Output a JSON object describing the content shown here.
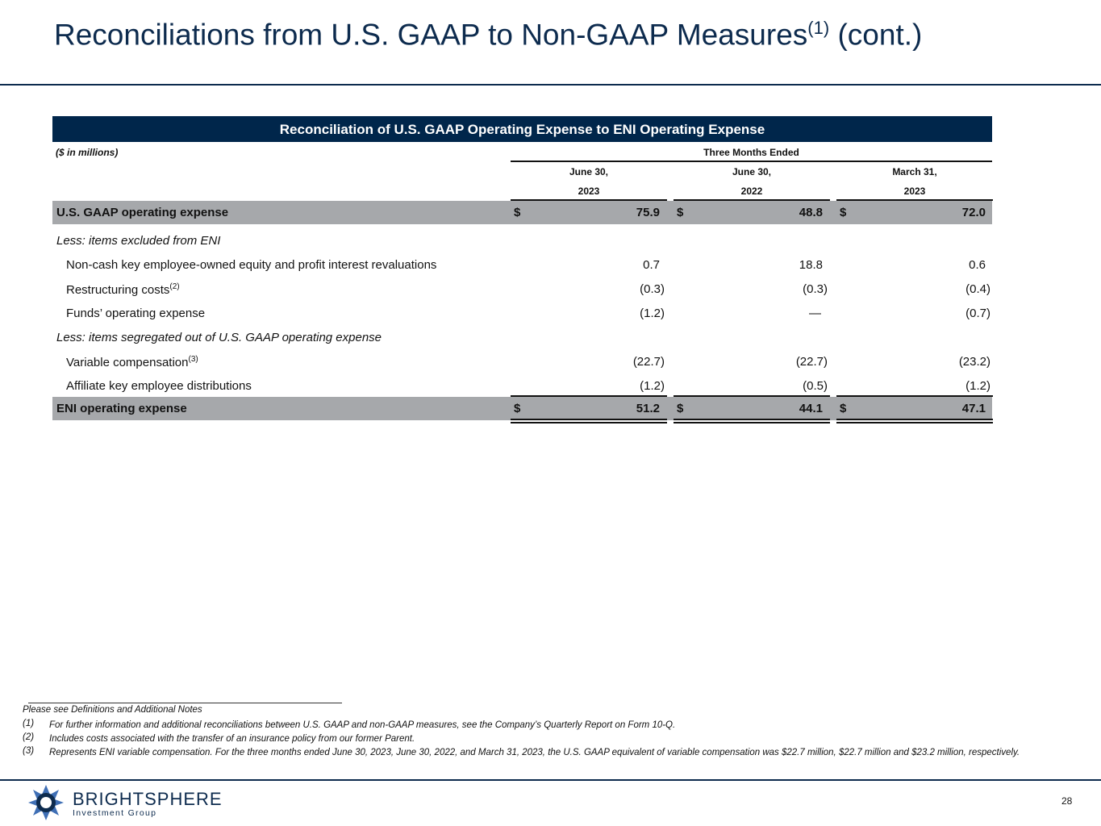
{
  "title": {
    "text": "Reconciliations from U.S. GAAP to Non-GAAP Measures",
    "sup": "(1)",
    "suffix": "(cont.)"
  },
  "table": {
    "caption": "Reconciliation of U.S. GAAP Operating Expense to ENI Operating Expense",
    "units": "($ in millions)",
    "period_header": "Three Months Ended",
    "columns": [
      [
        "June 30,",
        "2023"
      ],
      [
        "June 30,",
        "2022"
      ],
      [
        "March 31,",
        "2023"
      ]
    ],
    "currency": "$",
    "rows": [
      {
        "label": "U.S. GAAP operating expense",
        "values": [
          "75.9",
          "48.8",
          "72.0"
        ]
      },
      {
        "label": "Less: items excluded from ENI"
      },
      {
        "label": "Non-cash key employee-owned equity and profit interest revaluations",
        "values": [
          "0.7",
          "18.8",
          "0.6"
        ]
      },
      {
        "label": "Restructuring costs",
        "note": "(2)",
        "values": [
          "(0.3)",
          "(0.3)",
          "(0.4)"
        ]
      },
      {
        "label": "Funds’ operating expense",
        "values": [
          "(1.2)",
          "—",
          "(0.7)"
        ]
      },
      {
        "label": "Less: items segregated out of U.S. GAAP operating expense"
      },
      {
        "label": "Variable compensation",
        "note": "(3)",
        "values": [
          "(22.7)",
          "(22.7)",
          "(23.2)"
        ]
      },
      {
        "label": "Affiliate key employee distributions",
        "values": [
          "(1.2)",
          "(0.5)",
          "(1.2)"
        ]
      },
      {
        "label": "ENI operating expense",
        "values": [
          "51.2",
          "44.1",
          "47.1"
        ]
      }
    ]
  },
  "footnotes": {
    "intro": "Please see Definitions and Additional Notes",
    "notes": [
      {
        "marker": "(1)",
        "text": "For further information and additional reconciliations between U.S. GAAP and non-GAAP measures, see the Company’s Quarterly Report on Form 10-Q."
      },
      {
        "marker": "(2)",
        "text": "Includes costs associated with the transfer of an insurance policy from our former Parent."
      },
      {
        "marker": "(3)",
        "text": "Represents ENI variable compensation. For the three months ended June 30, 2023, June 30, 2022, and March 31, 2023, the U.S. GAAP equivalent of variable compensation was $22.7 million, $22.7 million and $23.2 million, respectively."
      }
    ]
  },
  "footer": {
    "brand": "BRIGHTSPHERE",
    "tagline": "Investment Group",
    "page_number": "28"
  }
}
